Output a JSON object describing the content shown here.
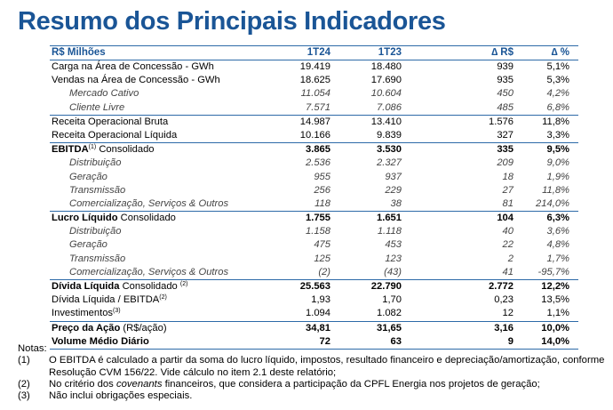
{
  "title": "Resumo dos Principais Indicadores",
  "header": {
    "label": "R$ Milhões",
    "c1": "1T24",
    "c2": "1T23",
    "c3": "∆ R$",
    "c4": "∆ %"
  },
  "rows": [
    {
      "label": "Carga na Área de Concessão - GWh",
      "c1": "19.419",
      "c2": "18.480",
      "c3": "939",
      "c4": "5,1%"
    },
    {
      "label": "Vendas na Área de Concessão - GWh",
      "c1": "18.625",
      "c2": "17.690",
      "c3": "935",
      "c4": "5,3%"
    },
    {
      "label": "Mercado Cativo",
      "c1": "11.054",
      "c2": "10.604",
      "c3": "450",
      "c4": "4,2%"
    },
    {
      "label": "Cliente Livre",
      "c1": "7.571",
      "c2": "7.086",
      "c3": "485",
      "c4": "6,8%"
    },
    {
      "label": "Receita Operacional Bruta",
      "c1": "14.987",
      "c2": "13.410",
      "c3": "1.576",
      "c4": "11,8%"
    },
    {
      "label": "Receita Operacional Líquida",
      "c1": "10.166",
      "c2": "9.839",
      "c3": "327",
      "c4": "3,3%"
    },
    {
      "label_bold": "EBITDA",
      "sup": "(1)",
      "label_rest": " Consolidado",
      "c1": "3.865",
      "c2": "3.530",
      "c3": "335",
      "c4": "9,5%"
    },
    {
      "label": "Distribuição",
      "c1": "2.536",
      "c2": "2.327",
      "c3": "209",
      "c4": "9,0%"
    },
    {
      "label": "Geração",
      "c1": "955",
      "c2": "937",
      "c3": "18",
      "c4": "1,9%"
    },
    {
      "label": "Transmissão",
      "c1": "256",
      "c2": "229",
      "c3": "27",
      "c4": "11,8%"
    },
    {
      "label": "Comercialização, Serviços & Outros",
      "c1": "118",
      "c2": "38",
      "c3": "81",
      "c4": "214,0%"
    },
    {
      "label_bold": "Lucro Líquido",
      "label_rest": " Consolidado",
      "c1": "1.755",
      "c2": "1.651",
      "c3": "104",
      "c4": "6,3%"
    },
    {
      "label": "Distribuição",
      "c1": "1.158",
      "c2": "1.118",
      "c3": "40",
      "c4": "3,6%"
    },
    {
      "label": "Geração",
      "c1": "475",
      "c2": "453",
      "c3": "22",
      "c4": "4,8%"
    },
    {
      "label": "Transmissão",
      "c1": "125",
      "c2": "123",
      "c3": "2",
      "c4": "1,7%"
    },
    {
      "label": "Comercialização, Serviços & Outros",
      "c1": "(2)",
      "c2": "(43)",
      "c3": "41",
      "c4": "-95,7%"
    },
    {
      "label_bold": "Dívida Líquida",
      "label_rest": " Consolidado ",
      "sup": "(2)",
      "c1": "25.563",
      "c2": "22.790",
      "c3": "2.772",
      "c4": "12,2%"
    },
    {
      "label": "Dívida Líquida / EBITDA",
      "sup": "(2)",
      "c1": "1,93",
      "c2": "1,70",
      "c3": "0,23",
      "c4": "13,5%"
    },
    {
      "label": "Investimentos",
      "sup": "(3)",
      "c1": "1.094",
      "c2": "1.082",
      "c3": "12",
      "c4": "1,1%"
    },
    {
      "label_bold": "Preço da Ação",
      "label_rest": " (R$/ação)",
      "c1": "34,81",
      "c2": "31,65",
      "c3": "3,16",
      "c4": "10,0%"
    },
    {
      "label_bold": "Volume Médio Diário",
      "c1": "72",
      "c2": "63",
      "c3": "9",
      "c4": "14,0%"
    }
  ],
  "notes": {
    "heading": "Notas:",
    "n1": "(1)",
    "t1a": "O EBITDA é calculado a partir da soma do lucro líquido, impostos, resultado financeiro e depreciação/amortização, conforme",
    "t1b": "Resolução CVM 156/22. Vide cálculo no item 2.1 deste relatório;",
    "n2": "(2)",
    "t2a": "No critério dos ",
    "t2b": "covenants",
    "t2c": " financeiros, que considera a participação da CPFL Energia nos projetos de geração;",
    "n3": "(3)",
    "t3": "Não inclui obrigações especiais."
  }
}
